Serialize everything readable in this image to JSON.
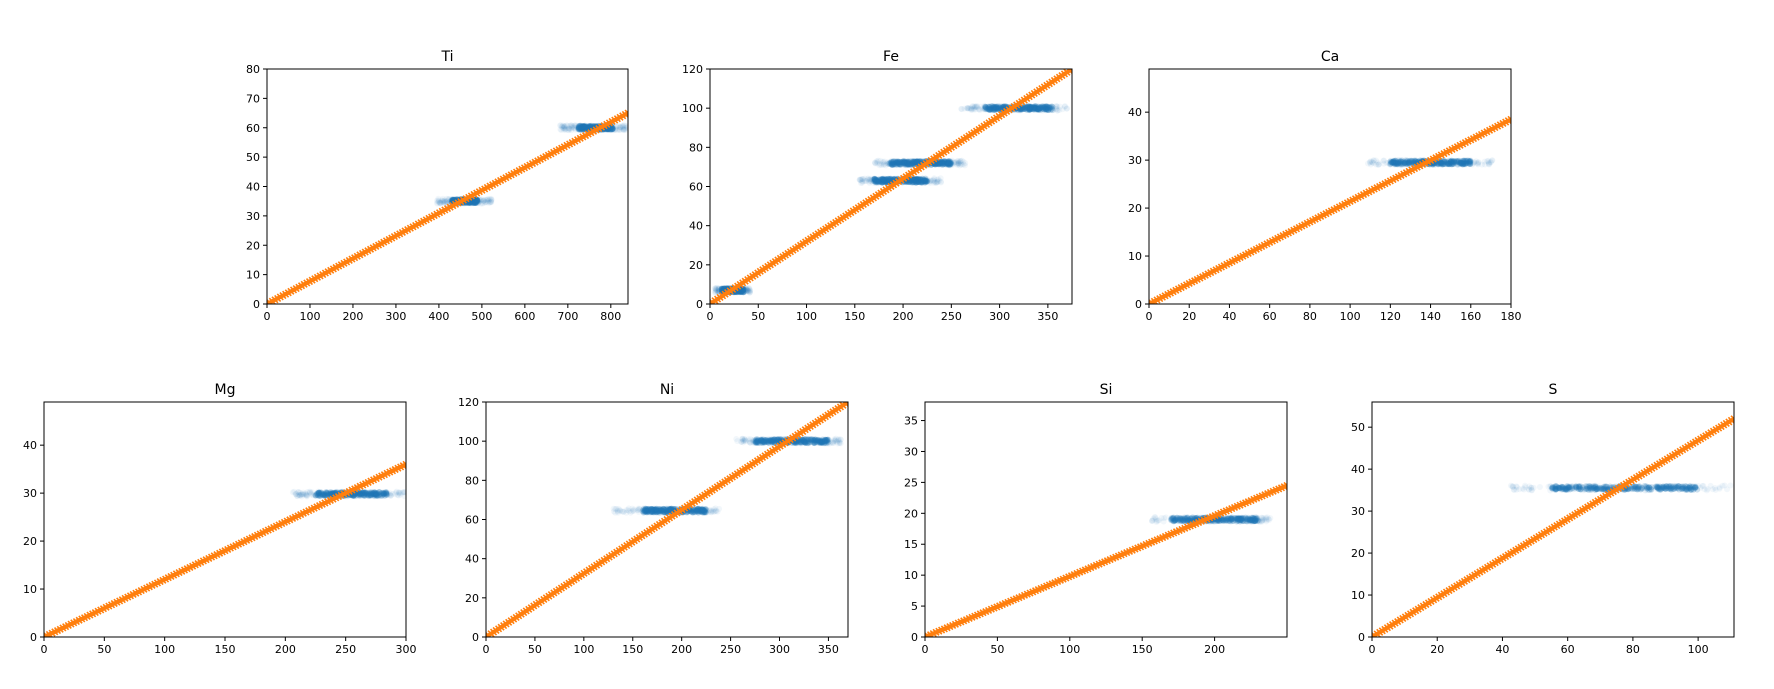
{
  "chart_data": [
    {
      "type": "scatter",
      "title": "Ti",
      "xlabel": "",
      "ylabel": "",
      "xlim": [
        0,
        840
      ],
      "ylim": [
        0,
        80
      ],
      "xticks": [
        0,
        100,
        200,
        300,
        400,
        500,
        600,
        700,
        800
      ],
      "yticks": [
        0,
        10,
        20,
        30,
        40,
        50,
        60,
        70,
        80
      ],
      "grid": false,
      "series": [
        {
          "kind": "cluster",
          "color": "#1f77b4",
          "marker": "o",
          "alpha": 0.1,
          "clusters": [
            {
              "y": 35,
              "x_core": [
                430,
                490
              ],
              "x_spread": [
                395,
                525
              ]
            },
            {
              "y": 60,
              "x_core": [
                725,
                805
              ],
              "x_spread": [
                680,
                840
              ]
            }
          ]
        },
        {
          "kind": "line",
          "color": "#ff7f0e",
          "marker": "x",
          "x": [
            0,
            840
          ],
          "y": [
            0,
            65
          ]
        }
      ]
    },
    {
      "type": "scatter",
      "title": "Fe",
      "xlabel": "",
      "ylabel": "",
      "xlim": [
        0,
        375
      ],
      "ylim": [
        0,
        120
      ],
      "xticks": [
        0,
        50,
        100,
        150,
        200,
        250,
        300,
        350
      ],
      "yticks": [
        0,
        20,
        40,
        60,
        80,
        100,
        120
      ],
      "grid": false,
      "series": [
        {
          "kind": "cluster",
          "color": "#1f77b4",
          "marker": "o",
          "alpha": 0.1,
          "clusters": [
            {
              "y": 7,
              "x_core": [
                12,
                35
              ],
              "x_spread": [
                5,
                42
              ]
            },
            {
              "y": 63,
              "x_core": [
                170,
                225
              ],
              "x_spread": [
                155,
                240
              ]
            },
            {
              "y": 72,
              "x_core": [
                185,
                250
              ],
              "x_spread": [
                170,
                265
              ]
            },
            {
              "y": 100,
              "x_core": [
                285,
                355
              ],
              "x_spread": [
                260,
                370
              ]
            }
          ]
        },
        {
          "kind": "line",
          "color": "#ff7f0e",
          "marker": "x",
          "x": [
            0,
            375
          ],
          "y": [
            0,
            120
          ]
        }
      ]
    },
    {
      "type": "scatter",
      "title": "Ca",
      "xlabel": "",
      "ylabel": "",
      "xlim": [
        0,
        180
      ],
      "ylim": [
        0,
        49
      ],
      "xticks": [
        0,
        20,
        40,
        60,
        80,
        100,
        120,
        140,
        160,
        180
      ],
      "yticks": [
        0,
        10,
        20,
        30,
        40
      ],
      "grid": false,
      "series": [
        {
          "kind": "cluster",
          "color": "#1f77b4",
          "marker": "o",
          "alpha": 0.1,
          "clusters": [
            {
              "y": 29.5,
              "x_core": [
                120,
                160
              ],
              "x_spread": [
                108,
                172
              ]
            }
          ]
        },
        {
          "kind": "line",
          "color": "#ff7f0e",
          "marker": "x",
          "x": [
            0,
            180
          ],
          "y": [
            0,
            38.5
          ]
        }
      ]
    },
    {
      "type": "scatter",
      "title": "Mg",
      "xlabel": "",
      "ylabel": "",
      "xlim": [
        0,
        300
      ],
      "ylim": [
        0,
        49
      ],
      "xticks": [
        0,
        50,
        100,
        150,
        200,
        250,
        300
      ],
      "yticks": [
        0,
        10,
        20,
        30,
        40
      ],
      "grid": false,
      "series": [
        {
          "kind": "cluster",
          "color": "#1f77b4",
          "marker": "o",
          "alpha": 0.1,
          "clusters": [
            {
              "y": 29.8,
              "x_core": [
                225,
                285
              ],
              "x_spread": [
                205,
                300
              ]
            }
          ]
        },
        {
          "kind": "line",
          "color": "#ff7f0e",
          "marker": "x",
          "x": [
            0,
            300
          ],
          "y": [
            0,
            36
          ]
        }
      ]
    },
    {
      "type": "scatter",
      "title": "Ni",
      "xlabel": "",
      "ylabel": "",
      "xlim": [
        0,
        370
      ],
      "ylim": [
        0,
        120
      ],
      "xticks": [
        0,
        50,
        100,
        150,
        200,
        250,
        300,
        350
      ],
      "yticks": [
        0,
        20,
        40,
        60,
        80,
        100,
        120
      ],
      "grid": false,
      "series": [
        {
          "kind": "cluster",
          "color": "#1f77b4",
          "marker": "o",
          "alpha": 0.1,
          "clusters": [
            {
              "y": 64.5,
              "x_core": [
                160,
                225
              ],
              "x_spread": [
                130,
                240
              ]
            },
            {
              "y": 100,
              "x_core": [
                275,
                350
              ],
              "x_spread": [
                255,
                365
              ]
            }
          ]
        },
        {
          "kind": "line",
          "color": "#ff7f0e",
          "marker": "x",
          "x": [
            0,
            370
          ],
          "y": [
            0,
            120
          ]
        }
      ]
    },
    {
      "type": "scatter",
      "title": "Si",
      "xlabel": "",
      "ylabel": "",
      "xlim": [
        0,
        250
      ],
      "ylim": [
        0,
        38
      ],
      "xticks": [
        0,
        50,
        100,
        150,
        200
      ],
      "yticks": [
        0,
        5,
        10,
        15,
        20,
        25,
        30,
        35
      ],
      "grid": false,
      "series": [
        {
          "kind": "cluster",
          "color": "#1f77b4",
          "marker": "o",
          "alpha": 0.1,
          "clusters": [
            {
              "y": 19,
              "x_core": [
                170,
                230
              ],
              "x_spread": [
                155,
                240
              ]
            }
          ]
        },
        {
          "kind": "line",
          "color": "#ff7f0e",
          "marker": "x",
          "x": [
            0,
            250
          ],
          "y": [
            0,
            24.5
          ]
        }
      ]
    },
    {
      "type": "scatter",
      "title": "S",
      "xlabel": "",
      "ylabel": "",
      "xlim": [
        0,
        111
      ],
      "ylim": [
        0,
        56
      ],
      "xticks": [
        0,
        20,
        40,
        60,
        80,
        100
      ],
      "yticks": [
        0,
        10,
        20,
        30,
        40,
        50
      ],
      "grid": false,
      "series": [
        {
          "kind": "cluster",
          "color": "#1f77b4",
          "marker": "o",
          "alpha": 0.1,
          "clusters": [
            {
              "y": 35.5,
              "x_core": [
                55,
                100
              ],
              "x_spread": [
                42,
                110
              ]
            }
          ]
        },
        {
          "kind": "line",
          "color": "#ff7f0e",
          "marker": "x",
          "x": [
            0,
            111
          ],
          "y": [
            0,
            52
          ]
        }
      ]
    }
  ]
}
